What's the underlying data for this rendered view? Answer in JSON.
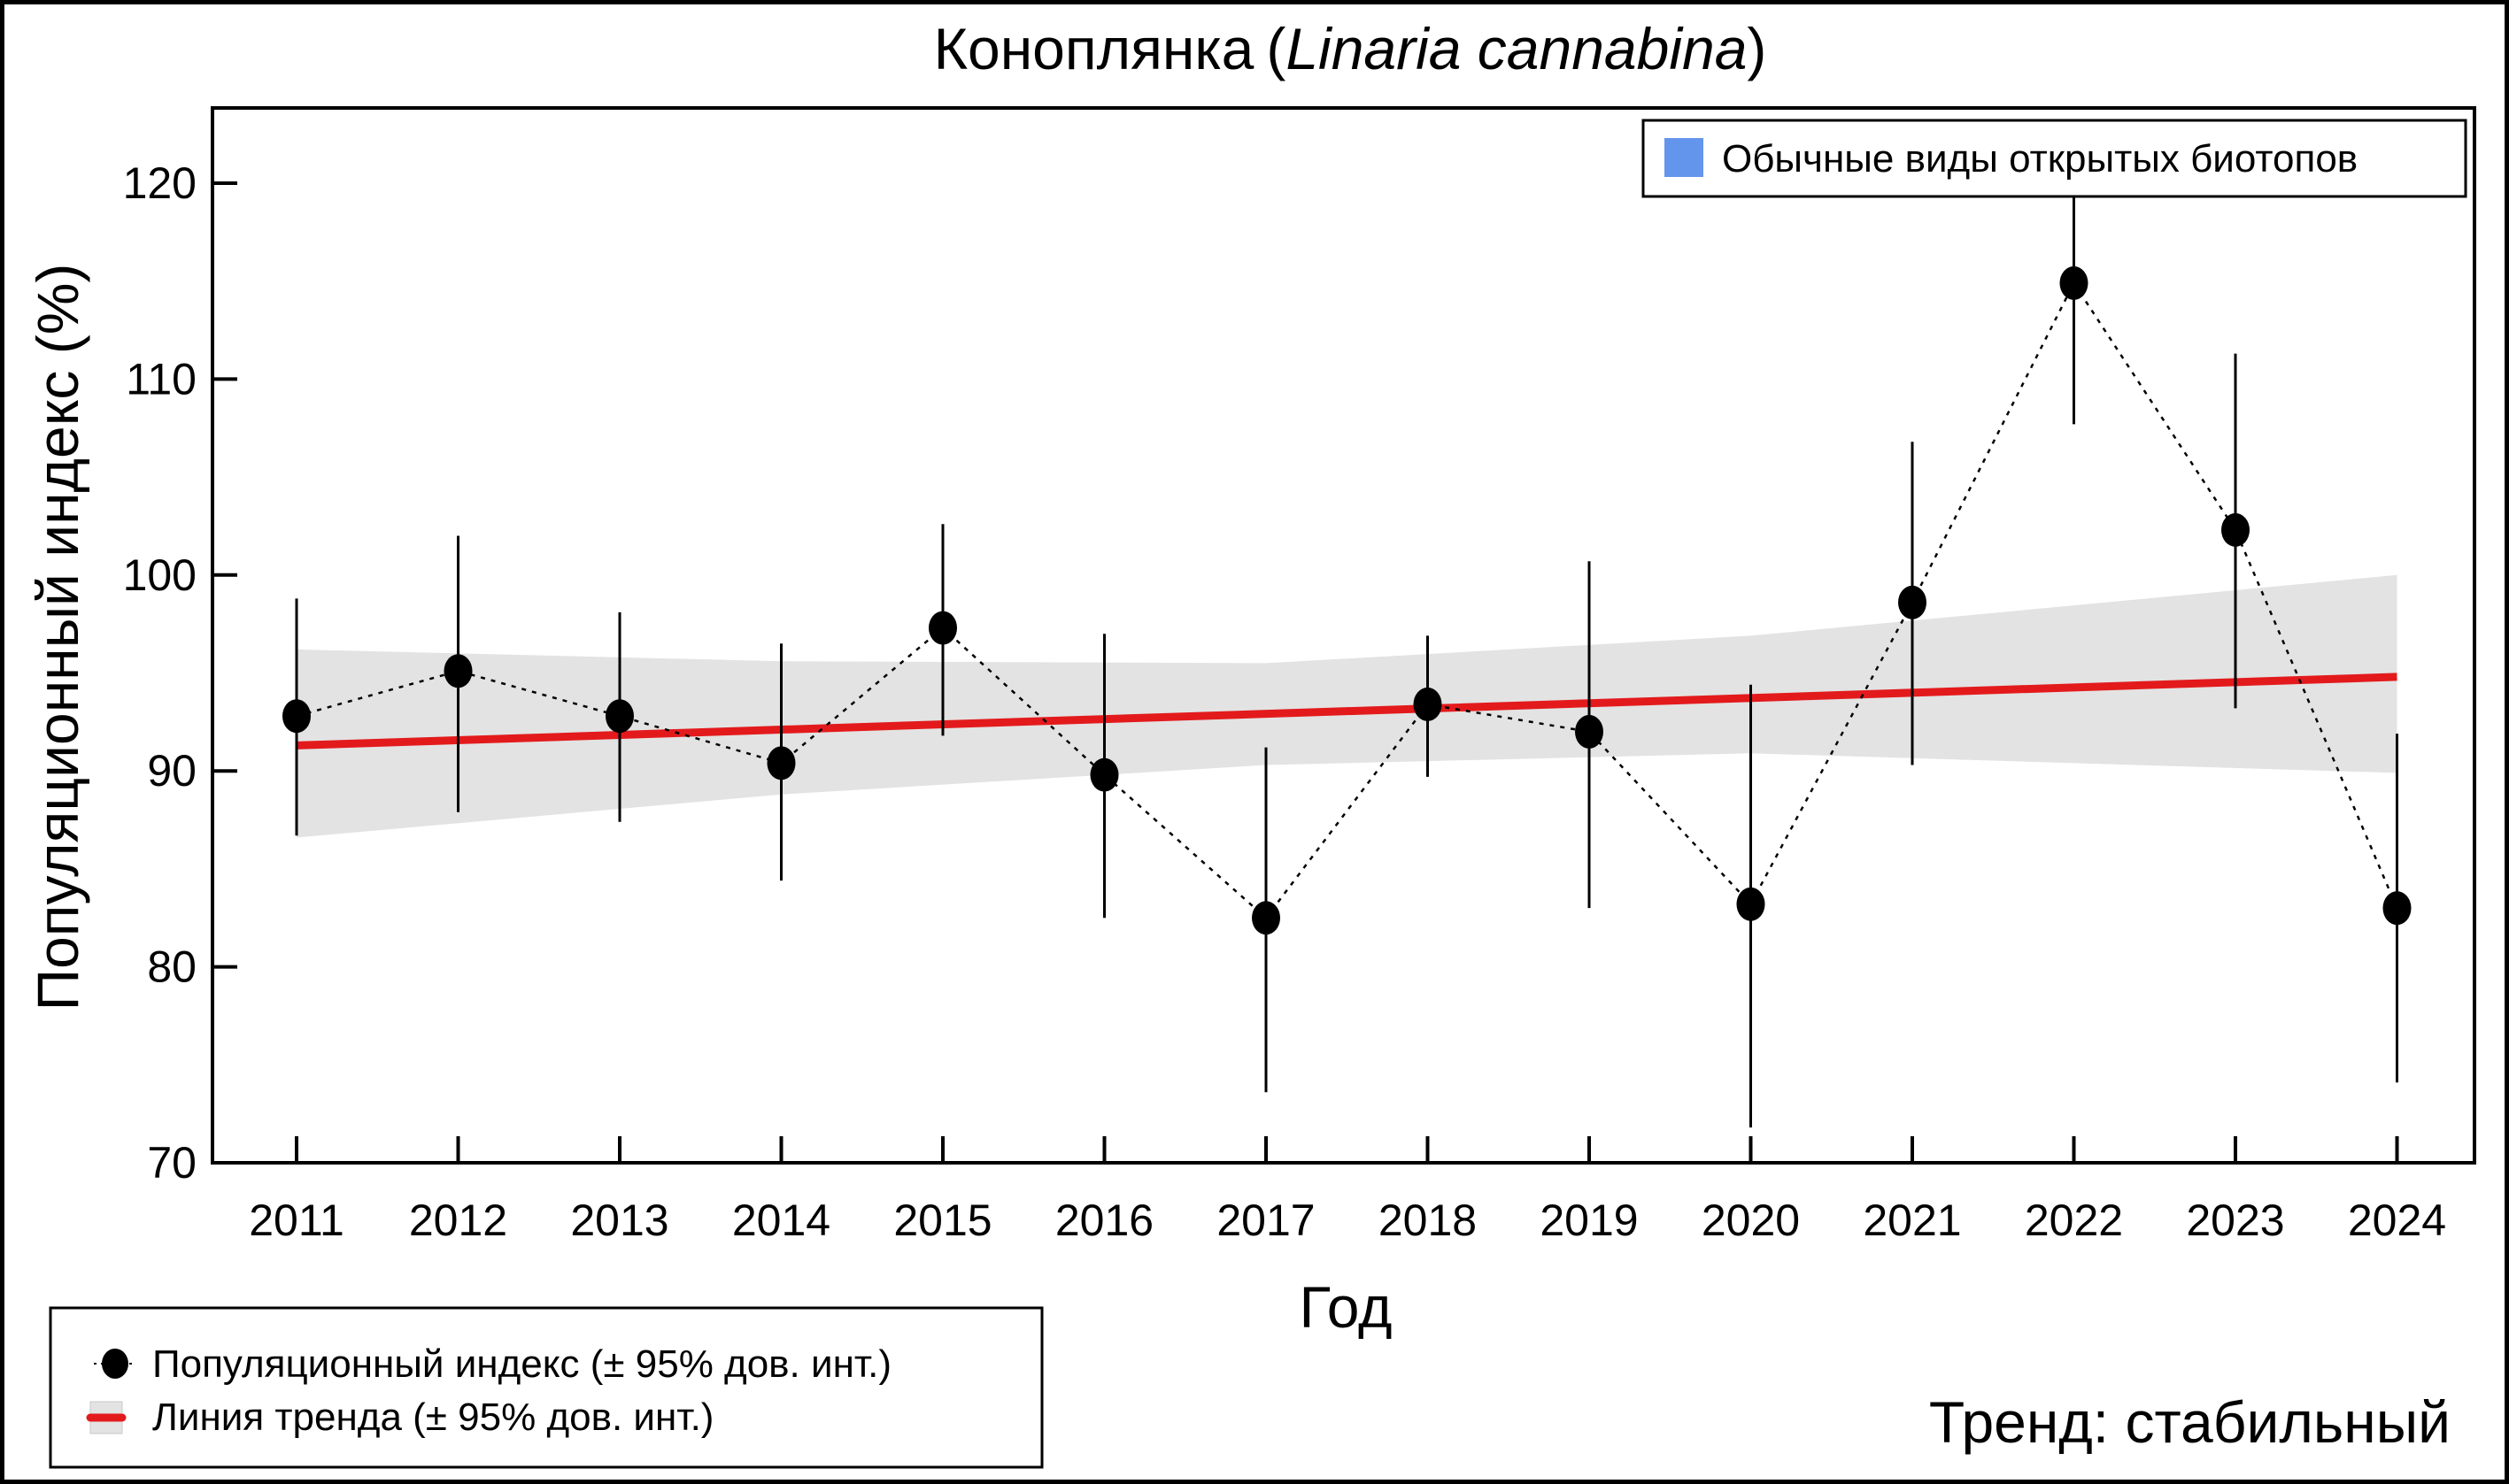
{
  "chart_data": {
    "type": "line",
    "title": {
      "common_name": "Коноплянка",
      "open_paren": "(",
      "latin_name": "Linaria cannabina",
      "close_paren": ")"
    },
    "xlabel": "Год",
    "ylabel": "Популяционный индекс (%)",
    "ylim": [
      70,
      124
    ],
    "y_ticks": [
      70,
      80,
      90,
      100,
      110,
      120
    ],
    "y_tick_labels": [
      "70",
      "80",
      "90",
      "100",
      "110",
      "120"
    ],
    "x": [
      2011,
      2012,
      2013,
      2014,
      2015,
      2016,
      2017,
      2018,
      2019,
      2020,
      2021,
      2022,
      2023,
      2024
    ],
    "x_tick_labels": [
      "2011",
      "2012",
      "2013",
      "2014",
      "2015",
      "2016",
      "2017",
      "2018",
      "2019",
      "2020",
      "2021",
      "2022",
      "2023",
      "2024"
    ],
    "series": [
      {
        "name": "Популяционный индекс (± 95% дов. инт.)",
        "values": [
          92.8,
          95.1,
          92.8,
          90.4,
          97.3,
          89.8,
          82.5,
          93.4,
          92.0,
          83.2,
          98.6,
          114.9,
          102.3,
          83.0
        ],
        "ci_upper": [
          98.8,
          102.0,
          98.1,
          96.5,
          102.6,
          97.0,
          91.2,
          96.9,
          100.7,
          94.4,
          106.8,
          119.6,
          111.3,
          91.9
        ],
        "ci_lower": [
          86.7,
          87.9,
          87.4,
          84.4,
          91.8,
          82.5,
          73.6,
          89.7,
          83.0,
          71.8,
          90.3,
          107.7,
          93.2,
          74.1
        ],
        "color": "#000000"
      },
      {
        "name": "Линия тренда (± 95% дов. инт.)",
        "x": [
          2011,
          2024
        ],
        "values": [
          91.3,
          94.8
        ],
        "band_x": [
          2011,
          2014,
          2017,
          2020,
          2024
        ],
        "band_upper": [
          96.2,
          95.6,
          95.5,
          96.9,
          100.0
        ],
        "band_lower": [
          86.6,
          88.8,
          90.3,
          90.9,
          89.9
        ],
        "color": "#e31a1c",
        "band_color": "#e3e3e3"
      }
    ],
    "legend": {
      "position": "bottom-left",
      "entries": [
        "Популяционный индекс (± 95% дов. инт.)",
        "Линия тренда (± 95% дов. инт.)"
      ]
    },
    "group_legend": {
      "position": "top-right",
      "label": "Обычные виды открытых биотопов",
      "color": "#6495ed"
    },
    "annotation": {
      "text": "Тренд: стабильный",
      "color": "#00008b"
    },
    "grid": false
  }
}
